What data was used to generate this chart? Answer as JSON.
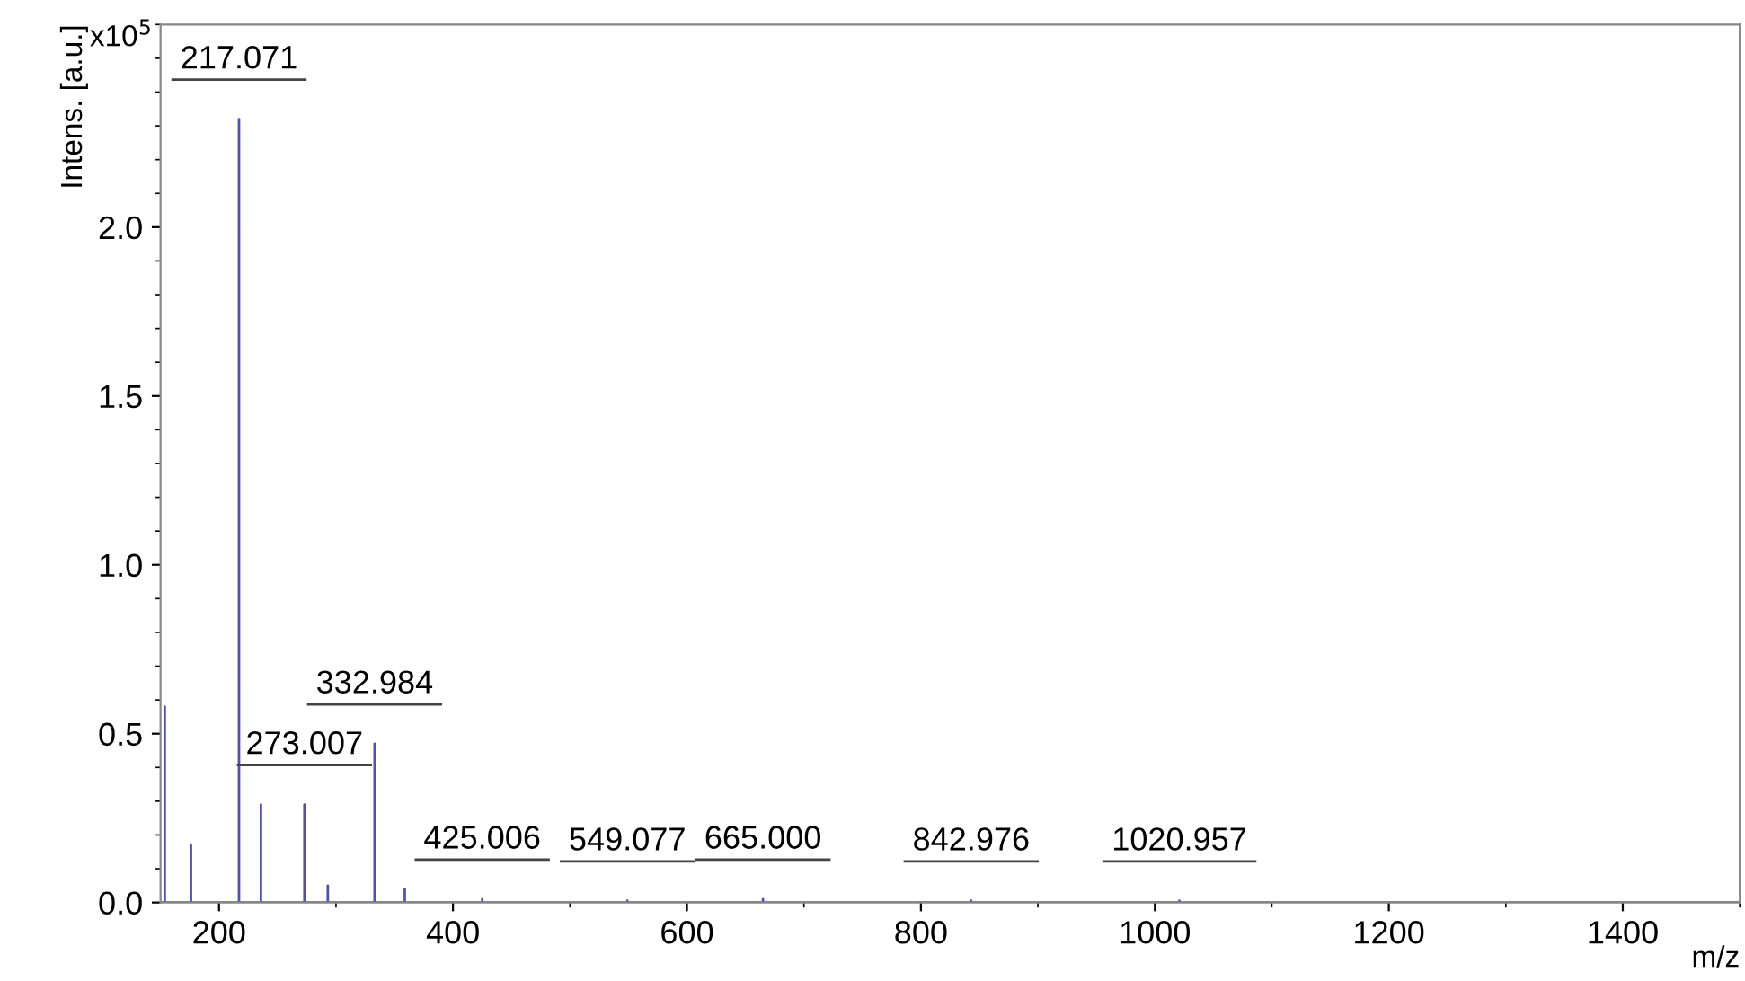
{
  "chart_data": {
    "type": "line",
    "xlabel": "m/z",
    "ylabel": "Intens. [a.u.]",
    "x": [
      150,
      153.6,
      153.6,
      153.6,
      176,
      176,
      176,
      217.071,
      217.071,
      217.071,
      235.8,
      235.8,
      235.8,
      273.007,
      273.007,
      273.007,
      293,
      293,
      293,
      332.984,
      332.984,
      332.984,
      358.8,
      358.8,
      358.8,
      425.006,
      425.006,
      425.006,
      549.077,
      549.077,
      549.077,
      665.0,
      665.0,
      665.0,
      842.976,
      842.976,
      842.976,
      1020.957,
      1020.957,
      1020.957,
      1500
    ],
    "series": [
      {
        "color": "#5050b0",
        "values": [
          0,
          0,
          0.58,
          0,
          0,
          0.17,
          0,
          0,
          2.32,
          0,
          0,
          0.29,
          0,
          0,
          0.29,
          0,
          0,
          0.05,
          0,
          0,
          0.47,
          0,
          0,
          0.04,
          0,
          0,
          0.01,
          0,
          0,
          0.005,
          0,
          0,
          0.01,
          0,
          0,
          0.005,
          0,
          0,
          0.005,
          0,
          0
        ]
      }
    ],
    "annotations": [
      "x10$^{5}$",
      {
        "text": "217.071",
        "x": 217.071,
        "y": 2.32
      },
      {
        "text": "273.007",
        "x": 273.007,
        "y": 0.29
      },
      {
        "text": "332.984",
        "x": 332.984,
        "y": 0.47
      },
      {
        "text": "425.006",
        "x": 425.006,
        "y": 0.01
      },
      {
        "text": "549.077",
        "x": 549.077,
        "y": 0.005
      },
      {
        "text": "665.000",
        "x": 665.0,
        "y": 0.01
      },
      {
        "text": "842.976",
        "x": 842.976,
        "y": 0.005
      },
      {
        "text": "1020.957",
        "x": 1020.957,
        "y": 0.005
      }
    ],
    "xlim": [
      150,
      1500
    ],
    "xticks": [
      200,
      400,
      600,
      800,
      1000,
      1200,
      1400
    ],
    "ylim": [
      0,
      2.6
    ],
    "yticks": [
      {
        "value": 0,
        "label": "0.0"
      },
      {
        "value": 0.5,
        "label": "0.5"
      },
      {
        "value": 1.0,
        "label": "1.0"
      },
      {
        "value": 1.5,
        "label": "1.5"
      },
      {
        "value": 2.0,
        "label": "2.0"
      }
    ],
    "grid": false,
    "legend": false,
    "line_style": "solid",
    "marker": "none"
  }
}
